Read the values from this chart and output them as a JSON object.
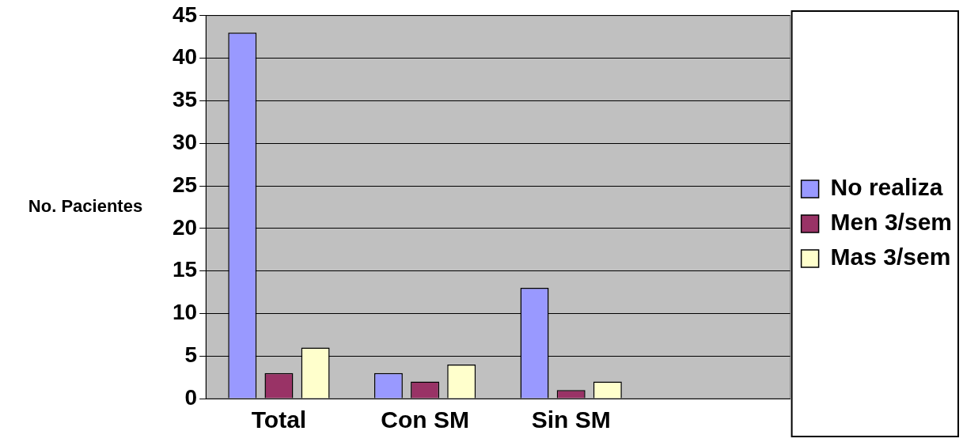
{
  "chart_data": {
    "type": "bar",
    "ylabel": "No. Pacientes",
    "categories": [
      "Total",
      "Con SM",
      "Sin SM",
      null
    ],
    "series": [
      {
        "name": "No realiza",
        "color": "#9999ff",
        "values": [
          43,
          3,
          13,
          null
        ]
      },
      {
        "name": "Men 3/sem",
        "color": "#993366",
        "values": [
          3,
          2,
          1,
          null
        ]
      },
      {
        "name": "Mas 3/sem",
        "color": "#ffffcc",
        "values": [
          6,
          4,
          2,
          null
        ]
      }
    ],
    "ylim": [
      0,
      45
    ],
    "yticks": [
      0,
      5,
      10,
      15,
      20,
      25,
      30,
      35,
      40,
      45
    ],
    "grid": "y",
    "legend": "right"
  }
}
